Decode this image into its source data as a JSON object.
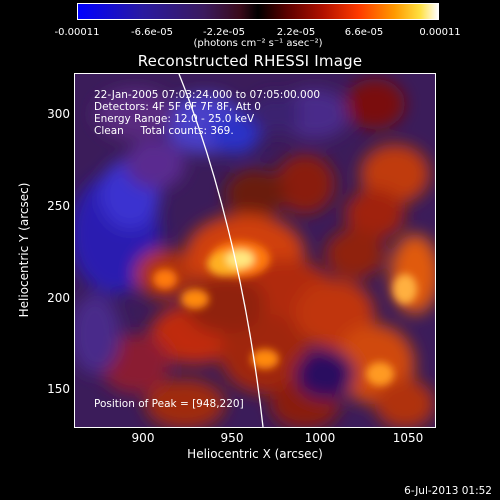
{
  "colorbar": {
    "tick_labels": [
      "-0.00011",
      "-6.6e-05",
      "-2.2e-05",
      "2.2e-05",
      "6.6e-05",
      "0.00011"
    ],
    "unit": "(photons cm⁻² s⁻¹ asec⁻²)",
    "range": [
      -0.00011,
      0.00011
    ],
    "colormap": [
      "#0000ff",
      "#3a1a5e",
      "#000000",
      "#b01000",
      "#ff9a00",
      "#ffffff"
    ]
  },
  "title": "Reconstructed RHESSI Image",
  "info": {
    "line1": "22-Jan-2005 07:03:24.000 to 07:05:00.000",
    "line2": "Detectors: 4F 5F 6F 7F 8F, Att 0",
    "line3": "Energy Range: 12.0 - 25.0 keV",
    "line4": "Clean     Total counts: 369.",
    "peak": "Position of Peak = [948,220]"
  },
  "axes": {
    "xlabel": "Heliocentric X (arcsec)",
    "ylabel": "Heliocentric Y (arcsec)",
    "xticks": [
      "900",
      "950",
      "1000",
      "1050"
    ],
    "yticks": [
      "150",
      "200",
      "250",
      "300"
    ],
    "xrange": [
      864,
      1068
    ],
    "yrange": [
      130,
      330
    ]
  },
  "footer": "6-Jul-2013 01:52"
}
